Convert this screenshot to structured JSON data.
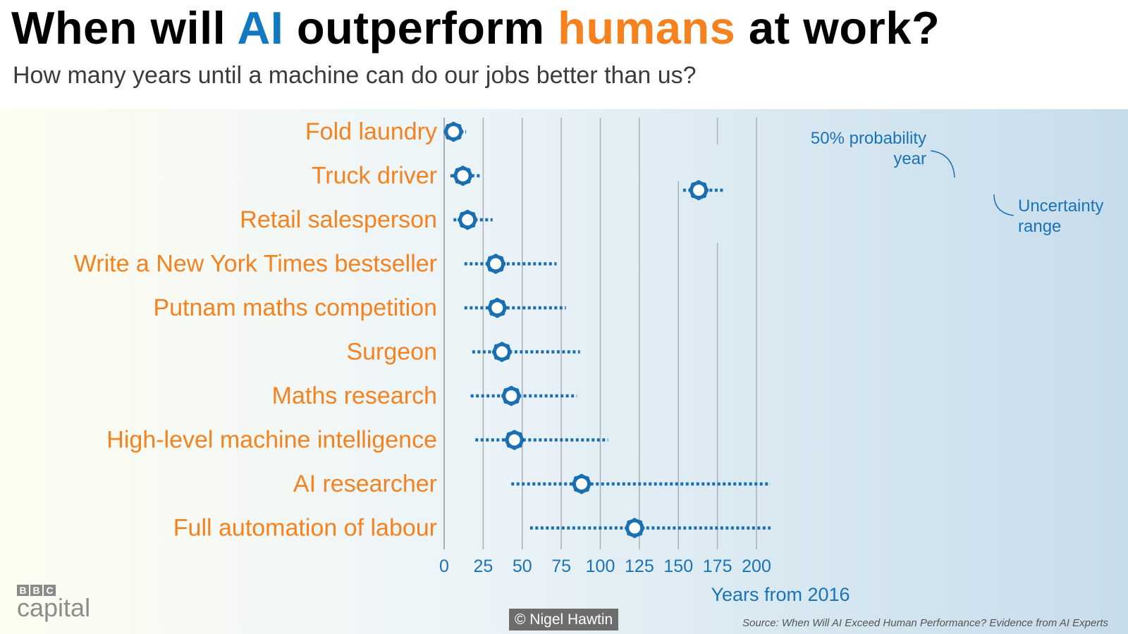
{
  "header": {
    "title_part1": "When will ",
    "title_ai": "AI",
    "title_part2": " outperform ",
    "title_humans": "humans",
    "title_part3": " at work?",
    "subtitle": "How many years until a machine can do our jobs better than us?"
  },
  "chart_data": {
    "type": "scatter",
    "style": "point estimate with uncertainty range (dotted range line, ring marker)",
    "x_axis": {
      "label": "Years from 2016",
      "min": 0,
      "max": 210,
      "ticks": [
        0,
        25,
        50,
        75,
        100,
        125,
        150,
        175,
        200
      ],
      "gridlines": true
    },
    "series": [
      {
        "category": "Fold laundry",
        "median": 6,
        "low": 0,
        "high": 14
      },
      {
        "category": "Truck driver",
        "median": 12,
        "low": 4,
        "high": 23
      },
      {
        "category": "Retail salesperson",
        "median": 15,
        "low": 6,
        "high": 31
      },
      {
        "category": "Write a New York Times bestseller",
        "median": 33,
        "low": 13,
        "high": 72
      },
      {
        "category": "Putnam maths competition",
        "median": 34,
        "low": 13,
        "high": 78
      },
      {
        "category": "Surgeon",
        "median": 37,
        "low": 18,
        "high": 87
      },
      {
        "category": "Maths research",
        "median": 43,
        "low": 17,
        "high": 85
      },
      {
        "category": "High-level machine intelligence",
        "median": 45,
        "low": 20,
        "high": 105
      },
      {
        "category": "AI researcher",
        "median": 88,
        "low": 43,
        "high": 209
      },
      {
        "category": "Full automation of labour",
        "median": 122,
        "low": 55,
        "high": 209
      }
    ],
    "legend": {
      "example": {
        "median": 163,
        "low": 153,
        "high": 180
      },
      "probability_label": "50% probability year",
      "probability_label_line1": "50% probability",
      "probability_label_line2": "year",
      "range_label": "Uncertainty range",
      "range_label_line1": "Uncertainty",
      "range_label_line2": "range"
    },
    "colors": {
      "title_ai": "#1279c0",
      "title_humans": "#f5821f",
      "category_labels": "#f5821f",
      "markers": "#1a6fb3",
      "axis_text": "#1a73b8",
      "gridlines": "#a8b1b8"
    }
  },
  "footer": {
    "logo_letters": [
      "B",
      "B",
      "C"
    ],
    "logo_word": "capital",
    "credit": "© Nigel Hawtin",
    "source": "Source: When Will AI Exceed Human Performance? Evidence from AI Experts"
  }
}
